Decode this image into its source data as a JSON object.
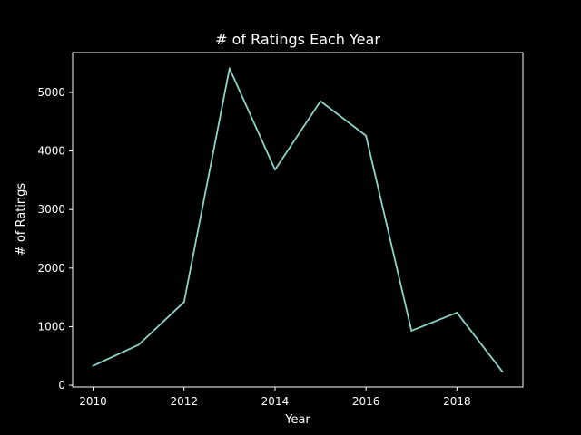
{
  "chart_data": {
    "type": "line",
    "title": "# of Ratings Each Year",
    "xlabel": "Year",
    "ylabel": "# of Ratings",
    "x": [
      2010,
      2011,
      2012,
      2013,
      2014,
      2015,
      2016,
      2017,
      2018,
      2019
    ],
    "series": [
      {
        "values": [
          330,
          690,
          1420,
          5410,
          3680,
          4850,
          4260,
          930,
          1240,
          230
        ]
      }
    ],
    "xlim": [
      2009.55,
      2019.45
    ],
    "ylim": [
      -30,
      5680
    ],
    "xticks": [
      2010,
      2012,
      2014,
      2016,
      2018
    ],
    "yticks": [
      0,
      1000,
      2000,
      3000,
      4000,
      5000
    ],
    "grid": false,
    "colors": {
      "background": "#000000",
      "foreground": "#ffffff",
      "line": "#8dd3c7"
    }
  }
}
